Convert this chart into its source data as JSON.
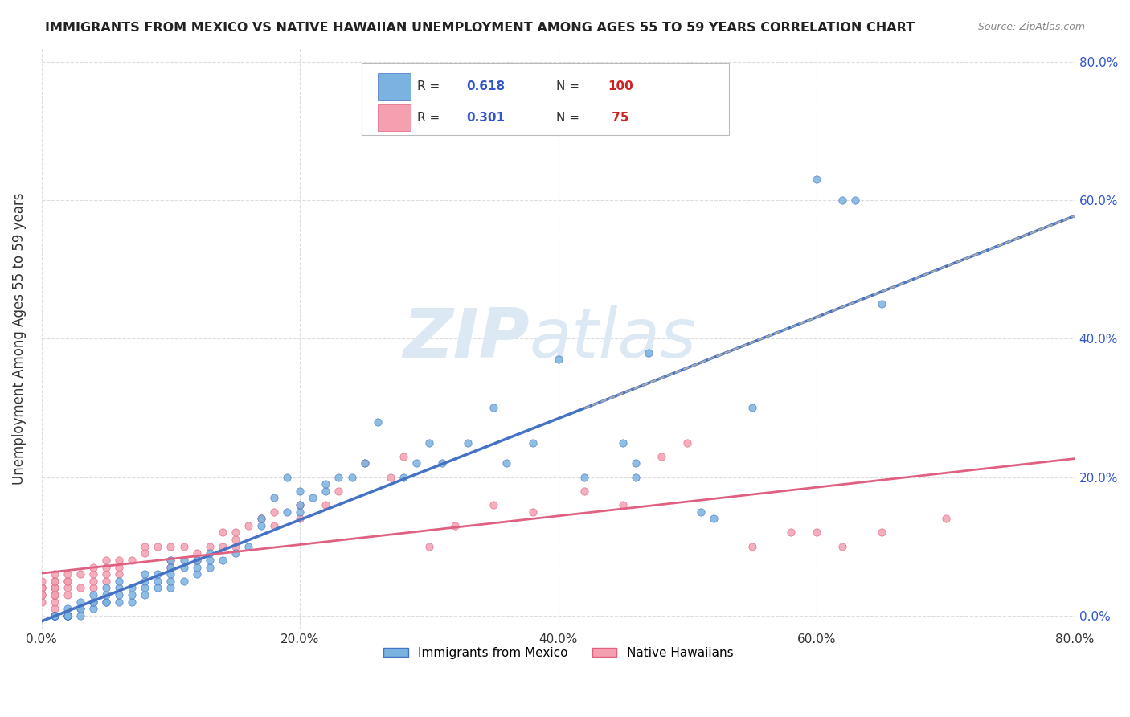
{
  "title": "IMMIGRANTS FROM MEXICO VS NATIVE HAWAIIAN UNEMPLOYMENT AMONG AGES 55 TO 59 YEARS CORRELATION CHART",
  "source": "Source: ZipAtlas.com",
  "xlabel": "",
  "ylabel": "Unemployment Among Ages 55 to 59 years",
  "xlim": [
    0.0,
    0.8
  ],
  "ylim": [
    -0.02,
    0.82
  ],
  "xticks": [
    0.0,
    0.2,
    0.4,
    0.6,
    0.8
  ],
  "yticks_right": [
    0.0,
    0.2,
    0.4,
    0.6,
    0.8
  ],
  "xtick_labels": [
    "0.0%",
    "20.0%",
    "40.0%",
    "60.0%",
    "80.0%"
  ],
  "ytick_labels_right": [
    "0.0%",
    "20.0%",
    "40.0%",
    "60.0%",
    "80.0%"
  ],
  "blue_color": "#7ab3e0",
  "pink_color": "#f4a0b0",
  "blue_line_color": "#4472c4",
  "pink_line_color": "#e06080",
  "dashed_line_color": "#aaaaaa",
  "watermark_zip_color": "#dce9f5",
  "watermark_atlas_color": "#dce9f5",
  "R_blue": 0.618,
  "N_blue": 100,
  "R_pink": 0.301,
  "N_pink": 75,
  "legend_R_color": "#3355cc",
  "legend_N_color": "#cc2222",
  "blue_scatter_x": [
    0.01,
    0.01,
    0.01,
    0.01,
    0.01,
    0.01,
    0.01,
    0.01,
    0.01,
    0.01,
    0.01,
    0.01,
    0.02,
    0.02,
    0.02,
    0.02,
    0.02,
    0.02,
    0.02,
    0.02,
    0.02,
    0.03,
    0.03,
    0.03,
    0.03,
    0.04,
    0.04,
    0.04,
    0.04,
    0.05,
    0.05,
    0.05,
    0.05,
    0.06,
    0.06,
    0.06,
    0.06,
    0.07,
    0.07,
    0.07,
    0.08,
    0.08,
    0.08,
    0.08,
    0.09,
    0.09,
    0.09,
    0.1,
    0.1,
    0.1,
    0.1,
    0.1,
    0.11,
    0.11,
    0.11,
    0.12,
    0.12,
    0.12,
    0.13,
    0.13,
    0.13,
    0.14,
    0.15,
    0.16,
    0.17,
    0.17,
    0.18,
    0.19,
    0.19,
    0.2,
    0.2,
    0.2,
    0.21,
    0.22,
    0.22,
    0.23,
    0.24,
    0.25,
    0.26,
    0.28,
    0.29,
    0.3,
    0.31,
    0.33,
    0.35,
    0.36,
    0.38,
    0.4,
    0.42,
    0.45,
    0.46,
    0.46,
    0.47,
    0.51,
    0.52,
    0.55,
    0.6,
    0.62,
    0.63,
    0.65
  ],
  "blue_scatter_y": [
    0.0,
    0.0,
    0.0,
    0.0,
    0.0,
    0.0,
    0.0,
    0.0,
    0.0,
    0.0,
    0.0,
    0.0,
    0.0,
    0.0,
    0.0,
    0.0,
    0.0,
    0.0,
    0.0,
    0.0,
    0.01,
    0.0,
    0.01,
    0.01,
    0.02,
    0.01,
    0.02,
    0.02,
    0.03,
    0.02,
    0.02,
    0.03,
    0.04,
    0.02,
    0.03,
    0.04,
    0.05,
    0.02,
    0.03,
    0.04,
    0.03,
    0.04,
    0.05,
    0.06,
    0.04,
    0.05,
    0.06,
    0.04,
    0.05,
    0.06,
    0.07,
    0.08,
    0.05,
    0.07,
    0.08,
    0.06,
    0.07,
    0.08,
    0.07,
    0.08,
    0.09,
    0.08,
    0.09,
    0.1,
    0.13,
    0.14,
    0.17,
    0.15,
    0.2,
    0.15,
    0.16,
    0.18,
    0.17,
    0.18,
    0.19,
    0.2,
    0.2,
    0.22,
    0.28,
    0.2,
    0.22,
    0.25,
    0.22,
    0.25,
    0.3,
    0.22,
    0.25,
    0.37,
    0.2,
    0.25,
    0.2,
    0.22,
    0.38,
    0.15,
    0.14,
    0.3,
    0.63,
    0.6,
    0.6,
    0.45
  ],
  "pink_scatter_x": [
    0.0,
    0.0,
    0.0,
    0.0,
    0.0,
    0.0,
    0.0,
    0.01,
    0.01,
    0.01,
    0.01,
    0.01,
    0.01,
    0.01,
    0.01,
    0.01,
    0.02,
    0.02,
    0.02,
    0.02,
    0.02,
    0.03,
    0.03,
    0.04,
    0.04,
    0.04,
    0.04,
    0.05,
    0.05,
    0.05,
    0.05,
    0.06,
    0.06,
    0.06,
    0.07,
    0.08,
    0.08,
    0.09,
    0.1,
    0.1,
    0.1,
    0.11,
    0.12,
    0.12,
    0.13,
    0.14,
    0.14,
    0.15,
    0.15,
    0.15,
    0.16,
    0.17,
    0.18,
    0.18,
    0.2,
    0.2,
    0.22,
    0.23,
    0.25,
    0.27,
    0.28,
    0.3,
    0.32,
    0.35,
    0.38,
    0.42,
    0.45,
    0.48,
    0.5,
    0.55,
    0.58,
    0.6,
    0.62,
    0.65,
    0.7
  ],
  "pink_scatter_y": [
    0.02,
    0.03,
    0.03,
    0.04,
    0.04,
    0.04,
    0.05,
    0.01,
    0.02,
    0.03,
    0.03,
    0.04,
    0.04,
    0.05,
    0.05,
    0.06,
    0.03,
    0.04,
    0.05,
    0.05,
    0.06,
    0.04,
    0.06,
    0.04,
    0.05,
    0.06,
    0.07,
    0.05,
    0.06,
    0.07,
    0.08,
    0.06,
    0.07,
    0.08,
    0.08,
    0.09,
    0.1,
    0.1,
    0.07,
    0.08,
    0.1,
    0.1,
    0.08,
    0.09,
    0.1,
    0.1,
    0.12,
    0.1,
    0.11,
    0.12,
    0.13,
    0.14,
    0.13,
    0.15,
    0.14,
    0.16,
    0.16,
    0.18,
    0.22,
    0.2,
    0.23,
    0.1,
    0.13,
    0.16,
    0.15,
    0.18,
    0.16,
    0.23,
    0.25,
    0.1,
    0.12,
    0.12,
    0.1,
    0.12,
    0.14
  ],
  "background_color": "#ffffff",
  "grid_color": "#dddddd"
}
